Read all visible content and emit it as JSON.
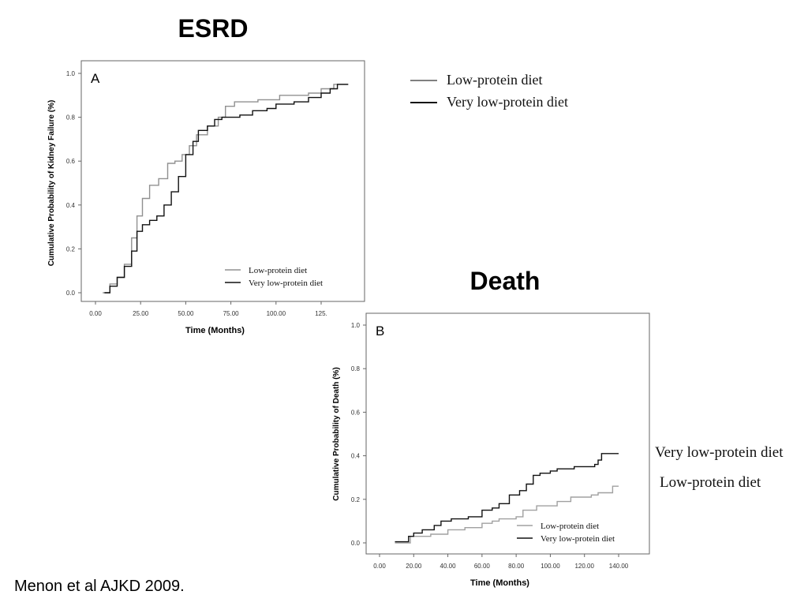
{
  "slide": {
    "esrd_title": "ESRD",
    "death_title": "Death",
    "legend": [
      {
        "label": "Low-protein diet",
        "color": "#808080"
      },
      {
        "label": "Very low-protein diet",
        "color": "#111111"
      }
    ],
    "side_labels": [
      "Very low-protein diet",
      "Low-protein diet"
    ],
    "citation": "Menon et al AJKD 2009."
  },
  "chart_data": [
    {
      "type": "line",
      "step": true,
      "panel_label": "A",
      "xlabel": "Time (Months)",
      "ylabel": "Cumulative Probability of Kidney Failure (%)",
      "xticks": [
        "0.00",
        "25.00",
        "50.00",
        "75.00",
        "100.00",
        "125."
      ],
      "xtick_values": [
        0,
        25,
        50,
        75,
        100,
        125
      ],
      "yticks": [
        "0.0",
        "0.2",
        "0.4",
        "0.6",
        "0.8",
        "1.0"
      ],
      "ytick_values": [
        0,
        0.2,
        0.4,
        0.6,
        0.8,
        1.0
      ],
      "ylim": [
        0,
        1
      ],
      "legend_position": "bottom-right",
      "series": [
        {
          "name": "Low-protein diet",
          "color": "#909090",
          "x": [
            4,
            8,
            12,
            16,
            20,
            23,
            26,
            30,
            35,
            40,
            44,
            48,
            52,
            56,
            62,
            68,
            72,
            77,
            90,
            102,
            118,
            125,
            132,
            140
          ],
          "y": [
            0,
            0.04,
            0.07,
            0.13,
            0.25,
            0.35,
            0.43,
            0.49,
            0.52,
            0.59,
            0.6,
            0.63,
            0.67,
            0.72,
            0.76,
            0.8,
            0.85,
            0.87,
            0.88,
            0.9,
            0.91,
            0.93,
            0.95,
            0.95
          ]
        },
        {
          "name": "Very low-protein diet",
          "color": "#111111",
          "x": [
            5,
            8,
            12,
            16,
            20,
            23,
            26,
            30,
            34,
            38,
            42,
            46,
            50,
            54,
            57,
            62,
            66,
            70,
            80,
            87,
            95,
            100,
            110,
            118,
            125,
            130,
            134,
            140
          ],
          "y": [
            0,
            0.03,
            0.07,
            0.12,
            0.19,
            0.28,
            0.31,
            0.33,
            0.35,
            0.4,
            0.46,
            0.53,
            0.63,
            0.69,
            0.74,
            0.76,
            0.79,
            0.8,
            0.81,
            0.83,
            0.84,
            0.86,
            0.87,
            0.89,
            0.91,
            0.93,
            0.95,
            0.95
          ]
        }
      ]
    },
    {
      "type": "line",
      "step": true,
      "panel_label": "B",
      "xlabel": "Time (Months)",
      "ylabel": "Cumulative Probability of Death (%)",
      "xticks": [
        "0.00",
        "20.00",
        "40.00",
        "60.00",
        "80.00",
        "100.00",
        "120.00",
        "140.00"
      ],
      "xtick_values": [
        0,
        20,
        40,
        60,
        80,
        100,
        120,
        140
      ],
      "yticks": [
        "0.0",
        "0.2",
        "0.4",
        "0.6",
        "0.8",
        "1.0"
      ],
      "ytick_values": [
        0,
        0.2,
        0.4,
        0.6,
        0.8,
        1.0
      ],
      "ylim": [
        0,
        1
      ],
      "legend_position": "bottom-right",
      "series": [
        {
          "name": "Low-protein diet",
          "color": "#a0a0a0",
          "x": [
            9,
            16,
            18,
            26,
            30,
            40,
            50,
            60,
            66,
            70,
            80,
            84,
            92,
            104,
            112,
            124,
            128,
            136,
            136.5,
            140
          ],
          "y": [
            0,
            0,
            0.03,
            0.03,
            0.04,
            0.06,
            0.07,
            0.09,
            0.1,
            0.11,
            0.12,
            0.15,
            0.17,
            0.19,
            0.21,
            0.22,
            0.23,
            0.23,
            0.26,
            0.26
          ]
        },
        {
          "name": "Very low-protein diet",
          "color": "#111111",
          "x": [
            9,
            16,
            17,
            20,
            25,
            32,
            36,
            42,
            52,
            60,
            66,
            70,
            76,
            82,
            86,
            90,
            94,
            100,
            104,
            114,
            126,
            128,
            130,
            140
          ],
          "y": [
            0.005,
            0.005,
            0.03,
            0.045,
            0.06,
            0.08,
            0.1,
            0.11,
            0.12,
            0.15,
            0.16,
            0.18,
            0.22,
            0.24,
            0.27,
            0.31,
            0.32,
            0.33,
            0.34,
            0.35,
            0.36,
            0.38,
            0.41,
            0.41
          ]
        }
      ]
    }
  ]
}
